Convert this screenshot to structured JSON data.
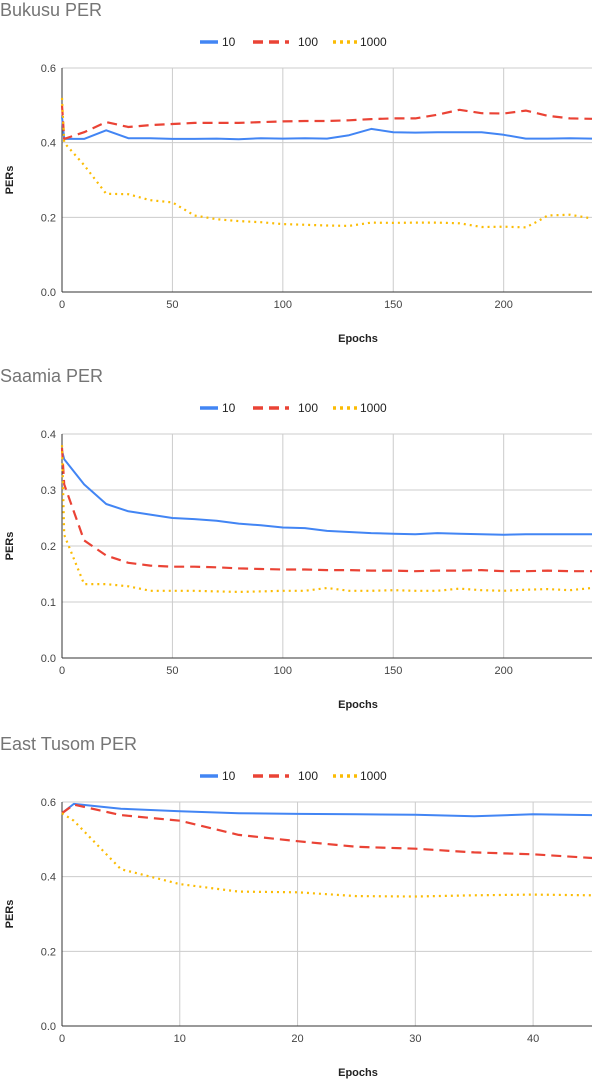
{
  "colors": {
    "series_10": "#4285F4",
    "series_100": "#EA4335",
    "series_1000": "#FBBC04",
    "grid": "#CCCCCC"
  },
  "chart_data": [
    {
      "type": "line",
      "title": "Bukusu PER",
      "xlabel": "Epochs",
      "ylabel": "PERs",
      "xlim": [
        0,
        240
      ],
      "ylim": [
        0,
        0.6
      ],
      "xticks": [
        0,
        50,
        100,
        150,
        200
      ],
      "yticks": [
        0.0,
        0.2,
        0.4,
        0.6
      ],
      "grid": true,
      "legend_position": "top",
      "series": [
        {
          "name": "10",
          "style": "solid",
          "x": [
            0,
            1,
            10,
            20,
            30,
            40,
            50,
            60,
            70,
            80,
            90,
            100,
            110,
            120,
            130,
            140,
            150,
            160,
            170,
            180,
            190,
            200,
            210,
            220,
            230,
            240
          ],
          "y": [
            0.47,
            0.41,
            0.41,
            0.433,
            0.412,
            0.412,
            0.41,
            0.41,
            0.411,
            0.409,
            0.412,
            0.411,
            0.412,
            0.411,
            0.42,
            0.437,
            0.428,
            0.427,
            0.428,
            0.428,
            0.428,
            0.421,
            0.411,
            0.411,
            0.412,
            0.411
          ]
        },
        {
          "name": "100",
          "style": "dashed",
          "x": [
            0,
            1,
            10,
            20,
            30,
            40,
            50,
            60,
            70,
            80,
            90,
            100,
            110,
            120,
            130,
            140,
            150,
            160,
            170,
            180,
            190,
            200,
            210,
            220,
            230,
            240
          ],
          "y": [
            0.5,
            0.41,
            0.428,
            0.455,
            0.442,
            0.447,
            0.45,
            0.453,
            0.453,
            0.453,
            0.455,
            0.457,
            0.458,
            0.458,
            0.46,
            0.463,
            0.465,
            0.465,
            0.475,
            0.488,
            0.479,
            0.478,
            0.486,
            0.472,
            0.465,
            0.464
          ]
        },
        {
          "name": "1000",
          "style": "dotted",
          "x": [
            0,
            1,
            10,
            20,
            30,
            40,
            50,
            60,
            70,
            80,
            90,
            100,
            110,
            120,
            130,
            140,
            150,
            160,
            170,
            180,
            190,
            200,
            210,
            215,
            220,
            230,
            240
          ],
          "y": [
            0.52,
            0.4,
            0.34,
            0.263,
            0.262,
            0.246,
            0.24,
            0.205,
            0.195,
            0.19,
            0.187,
            0.182,
            0.18,
            0.178,
            0.177,
            0.186,
            0.185,
            0.186,
            0.186,
            0.184,
            0.174,
            0.175,
            0.173,
            0.188,
            0.205,
            0.207,
            0.197
          ]
        }
      ]
    },
    {
      "type": "line",
      "title": "Saamia PER",
      "xlabel": "Epochs",
      "ylabel": "PERs",
      "xlim": [
        0,
        240
      ],
      "ylim": [
        0,
        0.4
      ],
      "xticks": [
        0,
        50,
        100,
        150,
        200
      ],
      "yticks": [
        0.0,
        0.1,
        0.2,
        0.3,
        0.4
      ],
      "grid": true,
      "legend_position": "top",
      "series": [
        {
          "name": "10",
          "style": "solid",
          "x": [
            0,
            1,
            10,
            20,
            30,
            40,
            50,
            60,
            70,
            80,
            90,
            100,
            110,
            120,
            130,
            140,
            150,
            160,
            170,
            180,
            190,
            200,
            210,
            220,
            230,
            240
          ],
          "y": [
            0.37,
            0.355,
            0.31,
            0.275,
            0.262,
            0.256,
            0.25,
            0.248,
            0.245,
            0.24,
            0.237,
            0.233,
            0.232,
            0.227,
            0.225,
            0.223,
            0.222,
            0.221,
            0.223,
            0.222,
            0.221,
            0.22,
            0.221,
            0.221,
            0.221,
            0.221
          ]
        },
        {
          "name": "100",
          "style": "dashed",
          "x": [
            0,
            1,
            10,
            20,
            30,
            40,
            50,
            60,
            70,
            80,
            90,
            100,
            110,
            120,
            130,
            140,
            150,
            160,
            170,
            180,
            190,
            200,
            210,
            220,
            230,
            240
          ],
          "y": [
            0.375,
            0.31,
            0.21,
            0.183,
            0.17,
            0.165,
            0.163,
            0.163,
            0.162,
            0.16,
            0.159,
            0.158,
            0.158,
            0.157,
            0.157,
            0.156,
            0.156,
            0.155,
            0.156,
            0.156,
            0.157,
            0.155,
            0.155,
            0.156,
            0.155,
            0.155
          ]
        },
        {
          "name": "1000",
          "style": "dotted",
          "x": [
            0,
            1,
            10,
            20,
            30,
            40,
            50,
            60,
            70,
            80,
            90,
            100,
            110,
            120,
            130,
            140,
            150,
            160,
            170,
            180,
            190,
            200,
            210,
            220,
            230,
            240
          ],
          "y": [
            0.38,
            0.22,
            0.132,
            0.132,
            0.128,
            0.12,
            0.12,
            0.12,
            0.119,
            0.118,
            0.119,
            0.12,
            0.12,
            0.125,
            0.12,
            0.12,
            0.121,
            0.12,
            0.12,
            0.124,
            0.121,
            0.12,
            0.122,
            0.123,
            0.121,
            0.125
          ]
        }
      ]
    },
    {
      "type": "line",
      "title": "East Tusom PER",
      "xlabel": "Epochs",
      "ylabel": "PERs",
      "xlim": [
        0,
        45
      ],
      "ylim": [
        0,
        0.6
      ],
      "xticks": [
        0,
        10,
        20,
        30,
        40
      ],
      "yticks": [
        0.0,
        0.2,
        0.4,
        0.6
      ],
      "grid": true,
      "legend_position": "top",
      "series": [
        {
          "name": "10",
          "style": "solid",
          "x": [
            0,
            1,
            5,
            10,
            15,
            20,
            25,
            30,
            35,
            40,
            45
          ],
          "y": [
            0.57,
            0.595,
            0.582,
            0.575,
            0.57,
            0.568,
            0.567,
            0.566,
            0.562,
            0.567,
            0.565
          ]
        },
        {
          "name": "100",
          "style": "dashed",
          "x": [
            0,
            1,
            5,
            10,
            15,
            20,
            25,
            30,
            35,
            40,
            45
          ],
          "y": [
            0.57,
            0.593,
            0.565,
            0.55,
            0.512,
            0.495,
            0.48,
            0.475,
            0.465,
            0.46,
            0.45
          ]
        },
        {
          "name": "1000",
          "style": "dotted",
          "x": [
            0,
            1,
            5,
            10,
            15,
            20,
            25,
            30,
            35,
            40,
            45
          ],
          "y": [
            0.57,
            0.55,
            0.42,
            0.38,
            0.36,
            0.358,
            0.348,
            0.347,
            0.35,
            0.352,
            0.35
          ]
        }
      ]
    }
  ]
}
